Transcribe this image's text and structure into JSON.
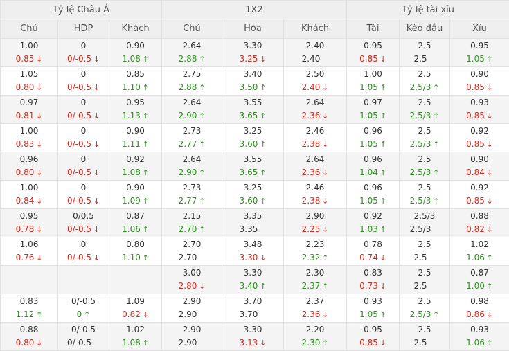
{
  "groups": [
    {
      "label": "Tỷ lệ Châu Á",
      "span": 3
    },
    {
      "label": "1X2",
      "span": 3
    },
    {
      "label": "Tỷ lệ tài xỉu",
      "span": 3
    }
  ],
  "columns": [
    "Chủ",
    "HDP",
    "Khách",
    "Chủ",
    "Hòa",
    "Khách",
    "Tài",
    "Kèo đầu",
    "Xỉu"
  ],
  "rows": [
    {
      "cells": [
        {
          "top": "1.00",
          "bottom": "0.85",
          "dir": "down"
        },
        {
          "top": "0",
          "bottom": "0/-0.5",
          "dir": "down"
        },
        {
          "top": "0.90",
          "bottom": "1.08",
          "dir": "up"
        },
        {
          "top": "2.64",
          "bottom": "2.88",
          "dir": "up"
        },
        {
          "top": "3.30",
          "bottom": "3.25",
          "dir": "down"
        },
        {
          "top": "2.40",
          "bottom": "2.40",
          "dir": "none"
        },
        {
          "top": "0.95",
          "bottom": "0.85",
          "dir": "down"
        },
        {
          "top": "2.5",
          "bottom": "2.5",
          "dir": "none"
        },
        {
          "top": "0.95",
          "bottom": "1.05",
          "dir": "up"
        }
      ]
    },
    {
      "cells": [
        {
          "top": "1.05",
          "bottom": "0.80",
          "dir": "down"
        },
        {
          "top": "0",
          "bottom": "0/-0.5",
          "dir": "down"
        },
        {
          "top": "0.85",
          "bottom": "1.10",
          "dir": "up"
        },
        {
          "top": "2.75",
          "bottom": "2.88",
          "dir": "up"
        },
        {
          "top": "3.40",
          "bottom": "3.50",
          "dir": "up"
        },
        {
          "top": "2.50",
          "bottom": "2.40",
          "dir": "down"
        },
        {
          "top": "1.00",
          "bottom": "1.05",
          "dir": "up"
        },
        {
          "top": "2.5",
          "bottom": "2.5/3",
          "dir": "up"
        },
        {
          "top": "0.90",
          "bottom": "0.85",
          "dir": "down"
        }
      ]
    },
    {
      "cells": [
        {
          "top": "0.97",
          "bottom": "0.81",
          "dir": "down"
        },
        {
          "top": "0",
          "bottom": "0/-0.5",
          "dir": "down"
        },
        {
          "top": "0.95",
          "bottom": "1.13",
          "dir": "up"
        },
        {
          "top": "2.64",
          "bottom": "2.90",
          "dir": "up"
        },
        {
          "top": "3.55",
          "bottom": "3.65",
          "dir": "up"
        },
        {
          "top": "2.64",
          "bottom": "2.36",
          "dir": "down"
        },
        {
          "top": "0.97",
          "bottom": "1.05",
          "dir": "up"
        },
        {
          "top": "2.5",
          "bottom": "2.5/3",
          "dir": "up"
        },
        {
          "top": "0.93",
          "bottom": "0.85",
          "dir": "down"
        }
      ]
    },
    {
      "cells": [
        {
          "top": "1.00",
          "bottom": "0.83",
          "dir": "down"
        },
        {
          "top": "0",
          "bottom": "0/-0.5",
          "dir": "down"
        },
        {
          "top": "0.90",
          "bottom": "1.11",
          "dir": "up"
        },
        {
          "top": "2.73",
          "bottom": "2.77",
          "dir": "up"
        },
        {
          "top": "3.25",
          "bottom": "3.60",
          "dir": "up"
        },
        {
          "top": "2.46",
          "bottom": "2.38",
          "dir": "down"
        },
        {
          "top": "0.96",
          "bottom": "1.05",
          "dir": "up"
        },
        {
          "top": "2.5",
          "bottom": "2.5/3",
          "dir": "up"
        },
        {
          "top": "0.92",
          "bottom": "0.85",
          "dir": "down"
        }
      ]
    },
    {
      "cells": [
        {
          "top": "0.96",
          "bottom": "0.80",
          "dir": "down"
        },
        {
          "top": "0",
          "bottom": "0/-0.5",
          "dir": "down"
        },
        {
          "top": "0.92",
          "bottom": "1.08",
          "dir": "up"
        },
        {
          "top": "2.64",
          "bottom": "2.90",
          "dir": "up"
        },
        {
          "top": "3.55",
          "bottom": "3.65",
          "dir": "up"
        },
        {
          "top": "2.64",
          "bottom": "2.36",
          "dir": "down"
        },
        {
          "top": "0.96",
          "bottom": "1.04",
          "dir": "up"
        },
        {
          "top": "2.5",
          "bottom": "2.5/3",
          "dir": "up"
        },
        {
          "top": "0.90",
          "bottom": "0.84",
          "dir": "down"
        }
      ]
    },
    {
      "cells": [
        {
          "top": "1.00",
          "bottom": "0.84",
          "dir": "down"
        },
        {
          "top": "0",
          "bottom": "0/-0.5",
          "dir": "down"
        },
        {
          "top": "0.90",
          "bottom": "1.09",
          "dir": "up"
        },
        {
          "top": "2.73",
          "bottom": "2.77",
          "dir": "up"
        },
        {
          "top": "3.25",
          "bottom": "3.60",
          "dir": "up"
        },
        {
          "top": "2.46",
          "bottom": "2.38",
          "dir": "down"
        },
        {
          "top": "0.96",
          "bottom": "1.05",
          "dir": "up"
        },
        {
          "top": "2.5",
          "bottom": "2.5/3",
          "dir": "up"
        },
        {
          "top": "0.92",
          "bottom": "0.85",
          "dir": "down"
        }
      ]
    },
    {
      "cells": [
        {
          "top": "0.95",
          "bottom": "0.78",
          "dir": "down"
        },
        {
          "top": "0/0.5",
          "bottom": "0/-0.5",
          "dir": "down"
        },
        {
          "top": "0.87",
          "bottom": "1.06",
          "dir": "up"
        },
        {
          "top": "2.15",
          "bottom": "2.70",
          "dir": "up"
        },
        {
          "top": "3.35",
          "bottom": "3.35",
          "dir": "none"
        },
        {
          "top": "2.90",
          "bottom": "2.25",
          "dir": "down"
        },
        {
          "top": "0.92",
          "bottom": "1.03",
          "dir": "up"
        },
        {
          "top": "2.5/3",
          "bottom": "2.5/3",
          "dir": "none"
        },
        {
          "top": "0.88",
          "bottom": "0.82",
          "dir": "down"
        }
      ]
    },
    {
      "cells": [
        {
          "top": "1.06",
          "bottom": "0.76",
          "dir": "down"
        },
        {
          "top": "0",
          "bottom": "0/-0.5",
          "dir": "down"
        },
        {
          "top": "0.80",
          "bottom": "1.10",
          "dir": "up"
        },
        {
          "top": "2.70",
          "bottom": "2.70",
          "dir": "none"
        },
        {
          "top": "3.48",
          "bottom": "3.30",
          "dir": "down"
        },
        {
          "top": "2.23",
          "bottom": "2.32",
          "dir": "up"
        },
        {
          "top": "0.78",
          "bottom": "0.74",
          "dir": "down"
        },
        {
          "top": "2.5",
          "bottom": "2.5",
          "dir": "none"
        },
        {
          "top": "1.02",
          "bottom": "1.06",
          "dir": "up"
        }
      ]
    },
    {
      "cells": [
        {
          "top": "",
          "bottom": "",
          "dir": "none"
        },
        {
          "top": "",
          "bottom": "",
          "dir": "none"
        },
        {
          "top": "",
          "bottom": "",
          "dir": "none"
        },
        {
          "top": "3.00",
          "bottom": "2.80",
          "dir": "down"
        },
        {
          "top": "3.30",
          "bottom": "3.40",
          "dir": "up"
        },
        {
          "top": "2.30",
          "bottom": "2.37",
          "dir": "up"
        },
        {
          "top": "0.83",
          "bottom": "0.73",
          "dir": "down"
        },
        {
          "top": "2.5",
          "bottom": "2.5",
          "dir": "none"
        },
        {
          "top": "0.87",
          "bottom": "1.00",
          "dir": "up"
        }
      ]
    },
    {
      "cells": [
        {
          "top": "0.83",
          "bottom": "1.12",
          "dir": "up"
        },
        {
          "top": "0/-0.5",
          "bottom": "0",
          "dir": "up"
        },
        {
          "top": "1.09",
          "bottom": "0.82",
          "dir": "down"
        },
        {
          "top": "2.90",
          "bottom": "2.90",
          "dir": "none"
        },
        {
          "top": "3.70",
          "bottom": "3.70",
          "dir": "none"
        },
        {
          "top": "2.37",
          "bottom": "2.36",
          "dir": "down"
        },
        {
          "top": "0.93",
          "bottom": "1.05",
          "dir": "up"
        },
        {
          "top": "2.5",
          "bottom": "2.5/3",
          "dir": "up"
        },
        {
          "top": "0.98",
          "bottom": "0.86",
          "dir": "down"
        }
      ]
    },
    {
      "cells": [
        {
          "top": "0.88",
          "bottom": "0.80",
          "dir": "down"
        },
        {
          "top": "0/-0.5",
          "bottom": "0/-0.5",
          "dir": "none"
        },
        {
          "top": "1.02",
          "bottom": "1.08",
          "dir": "up"
        },
        {
          "top": "2.90",
          "bottom": "2.90",
          "dir": "none"
        },
        {
          "top": "3.30",
          "bottom": "3.13",
          "dir": "down"
        },
        {
          "top": "2.20",
          "bottom": "2.30",
          "dir": "up"
        },
        {
          "top": "0.95",
          "bottom": "0.85",
          "dir": "down"
        },
        {
          "top": "2.5",
          "bottom": "2.5",
          "dir": "none"
        },
        {
          "top": "0.93",
          "bottom": "1.06",
          "dir": "up"
        }
      ]
    }
  ],
  "colors": {
    "up": "#2f8f20",
    "down": "#d42b1e",
    "header_bg": "#efefef",
    "alt_row_bg": "#f4f4f4"
  },
  "icons": {
    "up": "arrow-up-icon",
    "down": "arrow-down-icon"
  }
}
